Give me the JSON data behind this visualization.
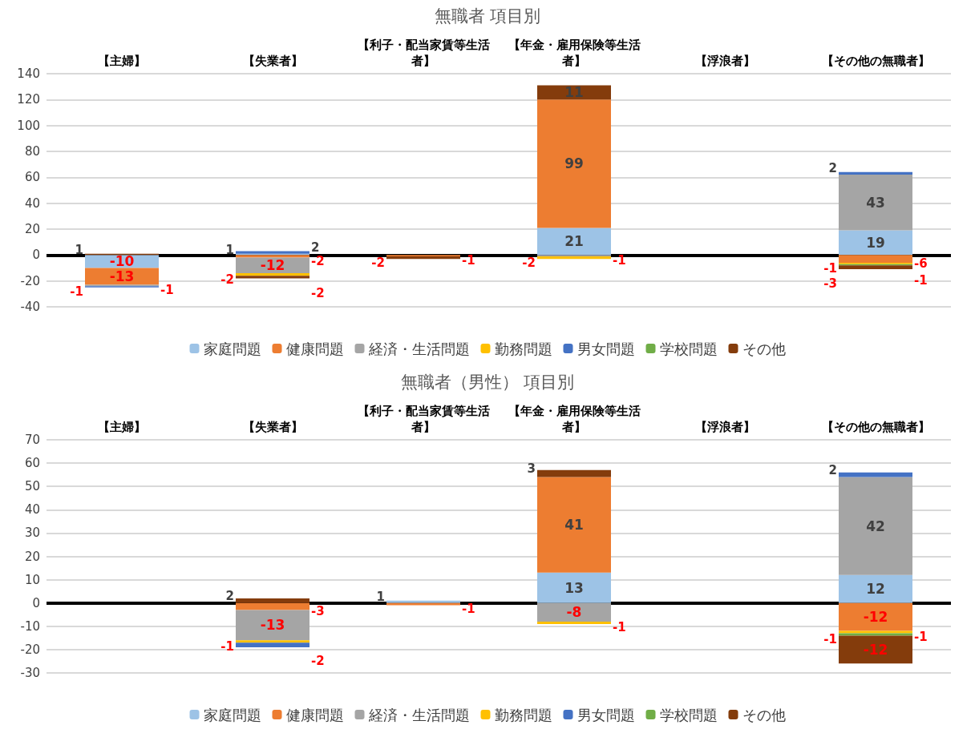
{
  "chart_data": [
    {
      "type": "bar",
      "title": "無職者 項目別",
      "stacked": true,
      "data_labels": true,
      "legend": "bottom",
      "grid": "y",
      "categories": [
        "【主婦】",
        "【失業者】",
        "【利子・配当家賃等生活者】",
        "【年金・雇用保険等生活者】",
        "【浮浪者】",
        "【その他の無職者】"
      ],
      "ylim": [
        -40,
        140
      ],
      "yticks": [
        -40,
        -20,
        0,
        20,
        40,
        60,
        80,
        100,
        120,
        140
      ],
      "ref_lines": [
        {
          "axis": "y",
          "value": 0,
          "color": "#000000"
        }
      ],
      "series": [
        {
          "name": "家庭問題",
          "color": "#9dc3e6",
          "values": [
            -10,
            1,
            null,
            21,
            null,
            19
          ]
        },
        {
          "name": "健康問題",
          "color": "#ed7d31",
          "values": [
            -13,
            -2,
            -1,
            99,
            null,
            -6
          ]
        },
        {
          "name": "経済・生活問題",
          "color": "#a5a5a5",
          "values": [
            -1,
            -12,
            null,
            -1,
            null,
            43
          ]
        },
        {
          "name": "勤務問題",
          "color": "#ffc000",
          "values": [
            null,
            -2,
            null,
            -2,
            null,
            -1
          ]
        },
        {
          "name": "男女問題",
          "color": "#4472c4",
          "values": [
            -1,
            2,
            null,
            null,
            null,
            2
          ]
        },
        {
          "name": "学校問題",
          "color": "#70ad47",
          "values": [
            null,
            null,
            null,
            null,
            null,
            -1
          ]
        },
        {
          "name": "その他",
          "color": "#843c0c",
          "values": [
            1,
            -2,
            -2,
            11,
            null,
            -3
          ]
        }
      ]
    },
    {
      "type": "bar",
      "title": "無職者（男性） 項目別",
      "stacked": true,
      "data_labels": true,
      "legend": "bottom",
      "grid": "y",
      "categories": [
        "【主婦】",
        "【失業者】",
        "【利子・配当家賃等生活者】",
        "【年金・雇用保険等生活者】",
        "【浮浪者】",
        "【その他の無職者】"
      ],
      "ylim": [
        -30,
        70
      ],
      "yticks": [
        -30,
        -20,
        -10,
        0,
        10,
        20,
        30,
        40,
        50,
        60,
        70
      ],
      "ref_lines": [
        {
          "axis": "y",
          "value": 0,
          "color": "#000000"
        }
      ],
      "series": [
        {
          "name": "家庭問題",
          "color": "#9dc3e6",
          "values": [
            null,
            null,
            1,
            13,
            null,
            12
          ]
        },
        {
          "name": "健康問題",
          "color": "#ed7d31",
          "values": [
            null,
            -3,
            -1,
            41,
            null,
            -12
          ]
        },
        {
          "name": "経済・生活問題",
          "color": "#a5a5a5",
          "values": [
            null,
            -13,
            null,
            -8,
            null,
            42
          ]
        },
        {
          "name": "勤務問題",
          "color": "#ffc000",
          "values": [
            null,
            -1,
            null,
            -1,
            null,
            -1
          ]
        },
        {
          "name": "男女問題",
          "color": "#4472c4",
          "values": [
            null,
            -2,
            null,
            null,
            null,
            2
          ]
        },
        {
          "name": "学校問題",
          "color": "#70ad47",
          "values": [
            null,
            null,
            null,
            null,
            null,
            -1
          ]
        },
        {
          "name": "その他",
          "color": "#843c0c",
          "values": [
            null,
            2,
            null,
            3,
            null,
            -12
          ]
        }
      ]
    }
  ]
}
